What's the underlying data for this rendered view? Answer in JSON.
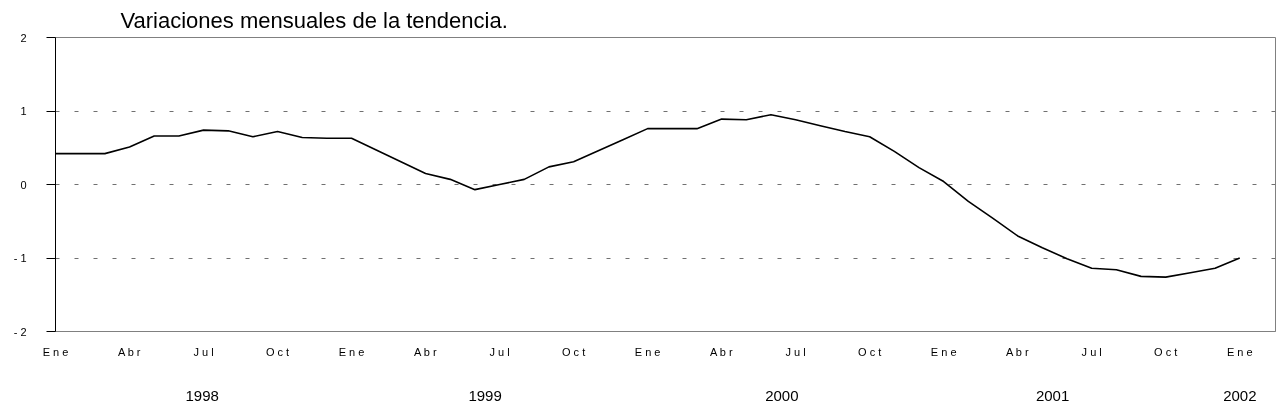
{
  "chart_data": {
    "type": "line",
    "title": "Variaciones mensuales de la tendencia.",
    "categories": [
      "E n e",
      null,
      null,
      "A b r",
      null,
      null,
      "J u l",
      null,
      null,
      "O c t",
      null,
      null,
      "E n e",
      null,
      null,
      "A b r",
      null,
      null,
      "J u l",
      null,
      null,
      "O c t",
      null,
      null,
      "E n e",
      null,
      null,
      "A b r",
      null,
      null,
      "J u l",
      null,
      null,
      "O c t",
      null,
      null,
      "E n e",
      null,
      null,
      "A b r",
      null,
      null,
      "J u l",
      null,
      null,
      "O c t",
      null,
      null,
      "E n e"
    ],
    "series": [
      {
        "color": "#000000",
        "values": [
          0.42,
          0.42,
          0.42,
          0.51,
          0.66,
          0.66,
          0.74,
          0.73,
          0.65,
          0.72,
          0.64,
          0.63,
          0.63,
          0.47,
          0.31,
          0.15,
          0.07,
          -0.07,
          0.0,
          0.07,
          0.24,
          0.31,
          0.46,
          0.61,
          0.76,
          0.76,
          0.76,
          0.89,
          0.88,
          0.95,
          0.88,
          0.8,
          0.72,
          0.65,
          0.45,
          0.23,
          0.04,
          -0.23,
          -0.46,
          -0.7,
          -0.86,
          -1.01,
          -1.14,
          -1.16,
          -1.25,
          -1.26,
          -1.2,
          -1.14,
          -1.0
        ]
      }
    ],
    "x2lim": [
      "1998-01",
      "2002-02-14"
    ],
    "x2ticks": [
      {
        "value": "1998-07",
        "label": "1998"
      },
      {
        "value": "1999-06-15",
        "label": "1999"
      },
      {
        "value": "2000-06-15",
        "label": "2000"
      },
      {
        "value": "2001-05-15",
        "label": "2001"
      },
      {
        "value": "2002-01",
        "label": "2002"
      }
    ],
    "ylim": [
      -2,
      2
    ],
    "yticks": [
      {
        "value": -2,
        "label": "- 2"
      },
      {
        "value": -1,
        "label": "- 1"
      },
      0,
      1,
      2
    ],
    "grid": "y",
    "line_style": "solid"
  }
}
